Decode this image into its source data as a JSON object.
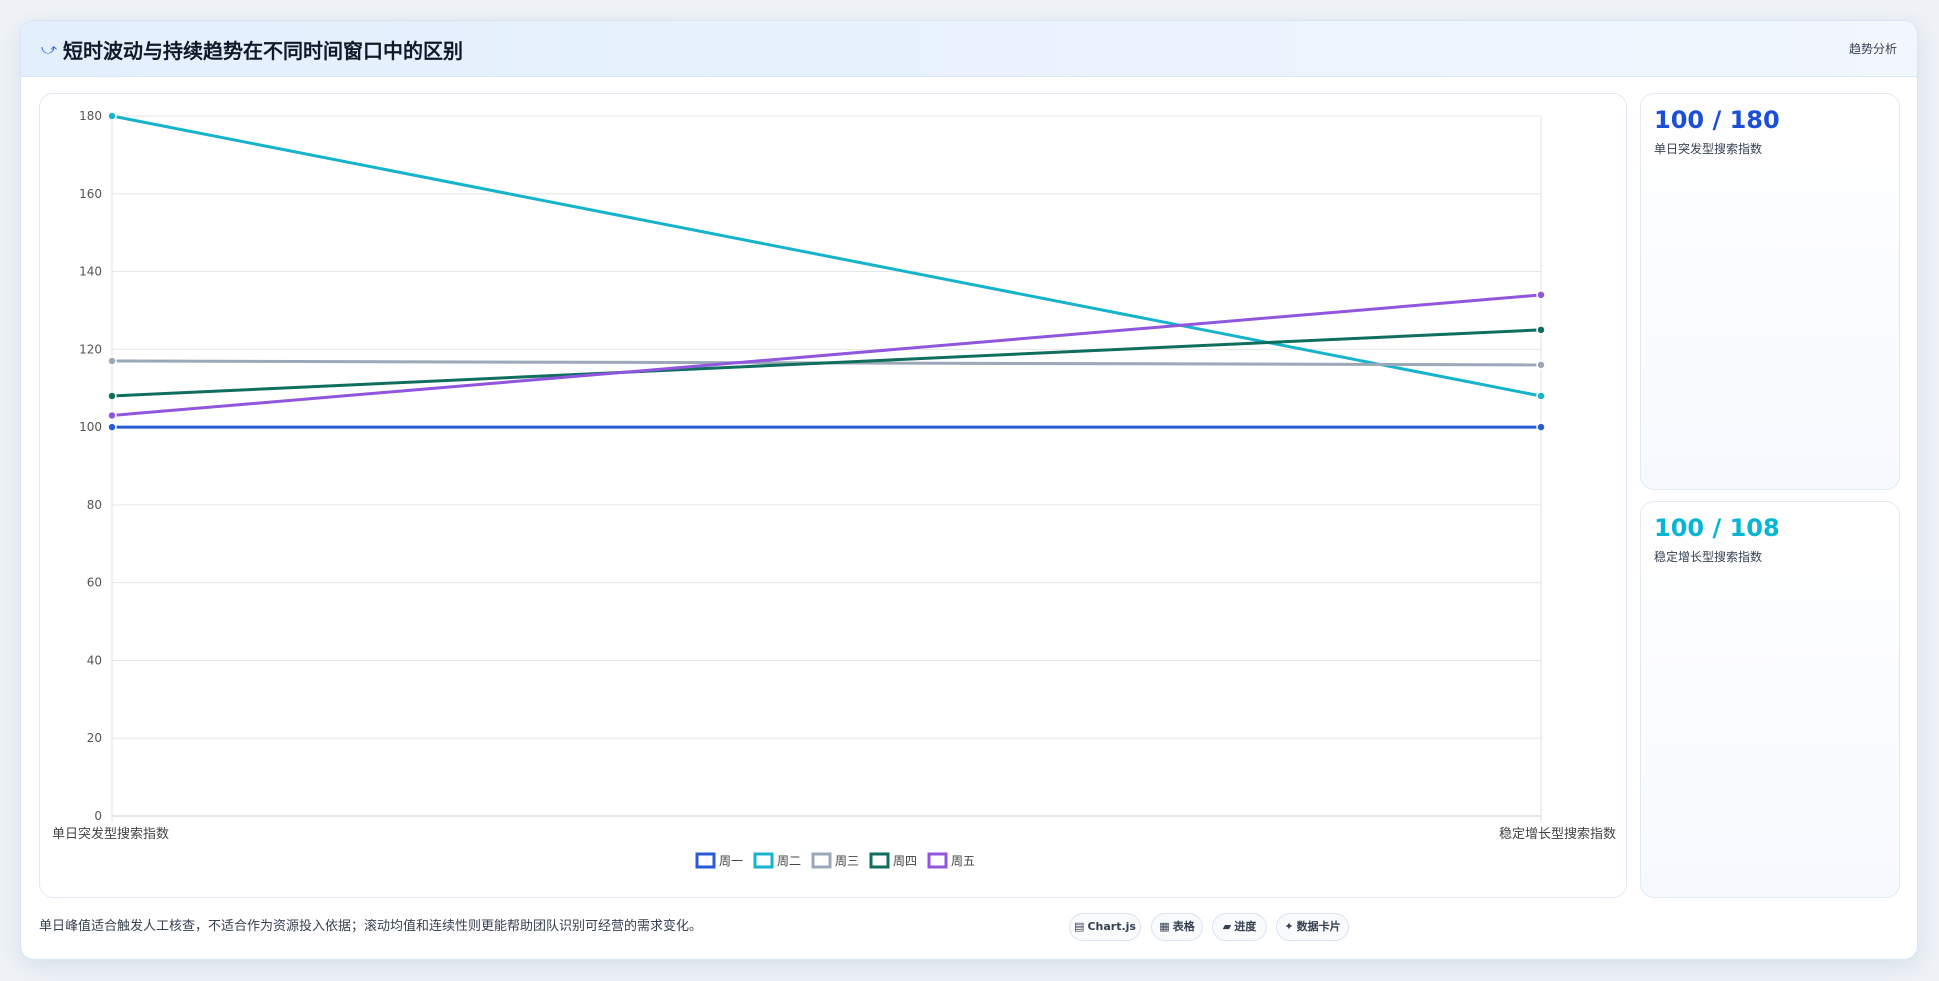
{
  "header": {
    "icon": "trend-icon",
    "title": "短时波动与持续趋势在不同时间窗口中的区别",
    "badge": "趋势分析"
  },
  "kpis": [
    {
      "value": "100 / 180",
      "label": "单日突发型搜索指数",
      "color": "#1d4ed8"
    },
    {
      "value": "100 / 108",
      "label": "稳定增长型搜索指数",
      "color": "#06b6d4"
    }
  ],
  "footer": {
    "note": "单日峰值适合触发人工核查，不适合作为资源投入依据；滚动均值和连续性则更能帮助团队识别可经营的需求变化。",
    "chips": [
      {
        "icon": "chart-icon",
        "glyph": "▤",
        "label": "Chart.js"
      },
      {
        "icon": "table-icon",
        "glyph": "▦",
        "label": "表格"
      },
      {
        "icon": "progress-icon",
        "glyph": "▰",
        "label": "进度"
      },
      {
        "icon": "card-icon",
        "glyph": "✦",
        "label": "数据卡片"
      }
    ]
  },
  "chart_data": {
    "type": "line",
    "categories": [
      "单日突发型搜索指数",
      "稳定增长型搜索指数"
    ],
    "series": [
      {
        "name": "周一",
        "values": [
          100,
          100
        ],
        "color": "#2a5bd7"
      },
      {
        "name": "周二",
        "values": [
          180,
          108
        ],
        "color": "#16b3cc"
      },
      {
        "name": "周三",
        "values": [
          117,
          116
        ],
        "color": "#9ca8b8"
      },
      {
        "name": "周四",
        "values": [
          108,
          125
        ],
        "color": "#0f6e5e"
      },
      {
        "name": "周五",
        "values": [
          103,
          134
        ],
        "color": "#9056dd"
      }
    ],
    "yticks": [
      0,
      20,
      40,
      60,
      80,
      100,
      120,
      140,
      160,
      180
    ],
    "ylim": [
      0,
      180
    ],
    "grid": true,
    "legend_position": "bottom"
  }
}
